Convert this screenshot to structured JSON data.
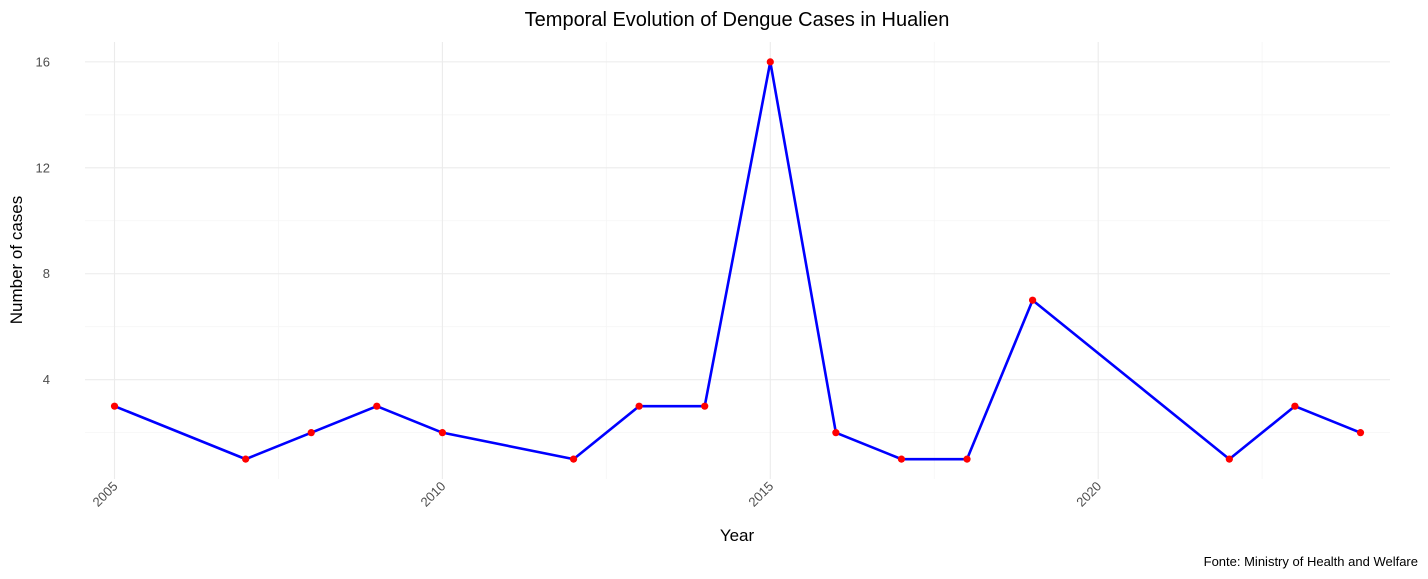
{
  "chart_data": {
    "type": "line",
    "title": "Temporal Evolution of Dengue Cases in Hualien",
    "xlabel": "Year",
    "ylabel": "Number of cases",
    "caption": "Fonte: Ministry of Health and Welfare",
    "x": [
      2005,
      2007,
      2008,
      2009,
      2010,
      2012,
      2013,
      2014,
      2015,
      2016,
      2017,
      2018,
      2019,
      2022,
      2023,
      2024
    ],
    "series": [
      {
        "values": [
          3,
          1,
          2,
          3,
          2,
          1,
          3,
          3,
          16,
          2,
          1,
          1,
          7,
          1,
          3,
          2
        ]
      }
    ],
    "xlim": [
      2004.55,
      2024.45
    ],
    "ylim": [
      0.25,
      16.75
    ],
    "x_ticks": [
      2005,
      2010,
      2015,
      2020
    ],
    "x_tick_labels": [
      "2005",
      "2010",
      "2015",
      "2020"
    ],
    "y_ticks": [
      4,
      8,
      12,
      16
    ],
    "y_tick_labels": [
      "4",
      "8",
      "12",
      "16"
    ],
    "x_tick_label_rotation": "45 degrees",
    "grid": true,
    "legend": "none",
    "colors": {
      "line": "#0000ff",
      "points": "#ff0000",
      "grid_major": "#ebebeb",
      "grid_minor": "#f5f5f5",
      "tick_text": "#4d4d4d",
      "text": "#000000"
    }
  }
}
